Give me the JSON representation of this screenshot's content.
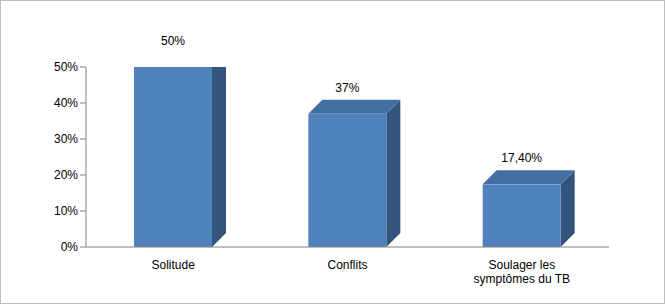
{
  "chart_data": {
    "type": "bar",
    "categories": [
      "Solitude",
      "Conflits",
      "Soulager les symptômes du TB"
    ],
    "values": [
      50,
      37,
      17.4
    ],
    "value_labels": [
      "50%",
      "37%",
      "17,40%"
    ],
    "color": "#4f81bd",
    "ylim": [
      0,
      50
    ],
    "yticks": [
      {
        "value": 0,
        "label": "0%"
      },
      {
        "value": 10,
        "label": "10%"
      },
      {
        "value": 20,
        "label": "20%"
      },
      {
        "value": 30,
        "label": "30%"
      },
      {
        "value": 40,
        "label": "40%"
      },
      {
        "value": 50,
        "label": "50%"
      }
    ],
    "grid": false,
    "data_labels": true
  }
}
